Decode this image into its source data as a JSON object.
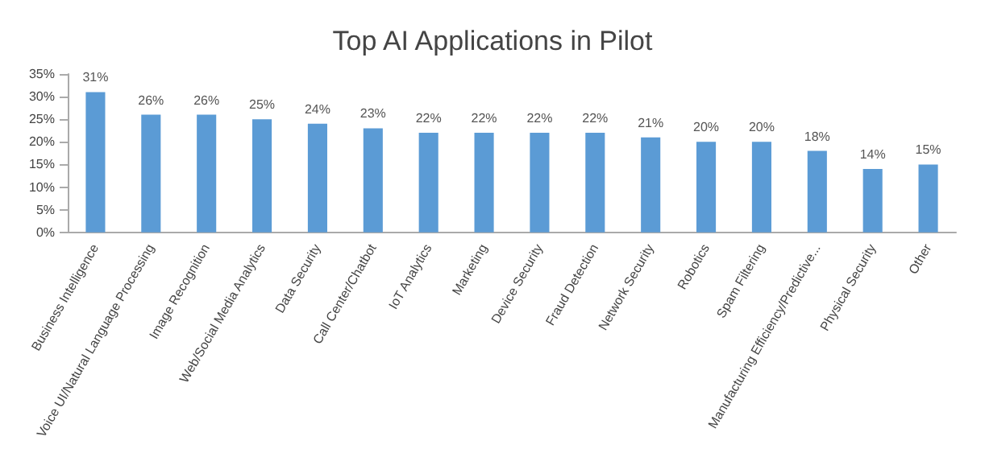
{
  "chart_data": {
    "type": "bar",
    "title": "Top AI Applications in Pilot",
    "categories": [
      "Business Intelligence",
      "Voice UI/Natural Language Processing",
      "Image Recognition",
      "Web/Social Media Analytics",
      "Data Security",
      "Call Center/Chatbot",
      "IoT Analytics",
      "Marketing",
      "Device Security",
      "Fraud Detection",
      "Network Security",
      "Robotics",
      "Spam Filtering",
      "Manufacturing Efficiency/Predictive...",
      "Physical Security",
      "Other"
    ],
    "values": [
      31,
      26,
      26,
      25,
      24,
      23,
      22,
      22,
      22,
      22,
      21,
      20,
      20,
      18,
      14,
      15
    ],
    "value_labels": [
      "31%",
      "26%",
      "26%",
      "25%",
      "24%",
      "23%",
      "22%",
      "22%",
      "22%",
      "22%",
      "21%",
      "20%",
      "20%",
      "18%",
      "14%",
      "15%"
    ],
    "color": "#5b9bd5",
    "ylim": [
      0,
      35
    ],
    "yticks": [
      {
        "value": 0,
        "label": "0%"
      },
      {
        "value": 5,
        "label": "5%"
      },
      {
        "value": 10,
        "label": "10%"
      },
      {
        "value": 15,
        "label": "15%"
      },
      {
        "value": 20,
        "label": "20%"
      },
      {
        "value": 25,
        "label": "25%"
      },
      {
        "value": 30,
        "label": "30%"
      },
      {
        "value": 35,
        "label": "35%"
      }
    ]
  }
}
